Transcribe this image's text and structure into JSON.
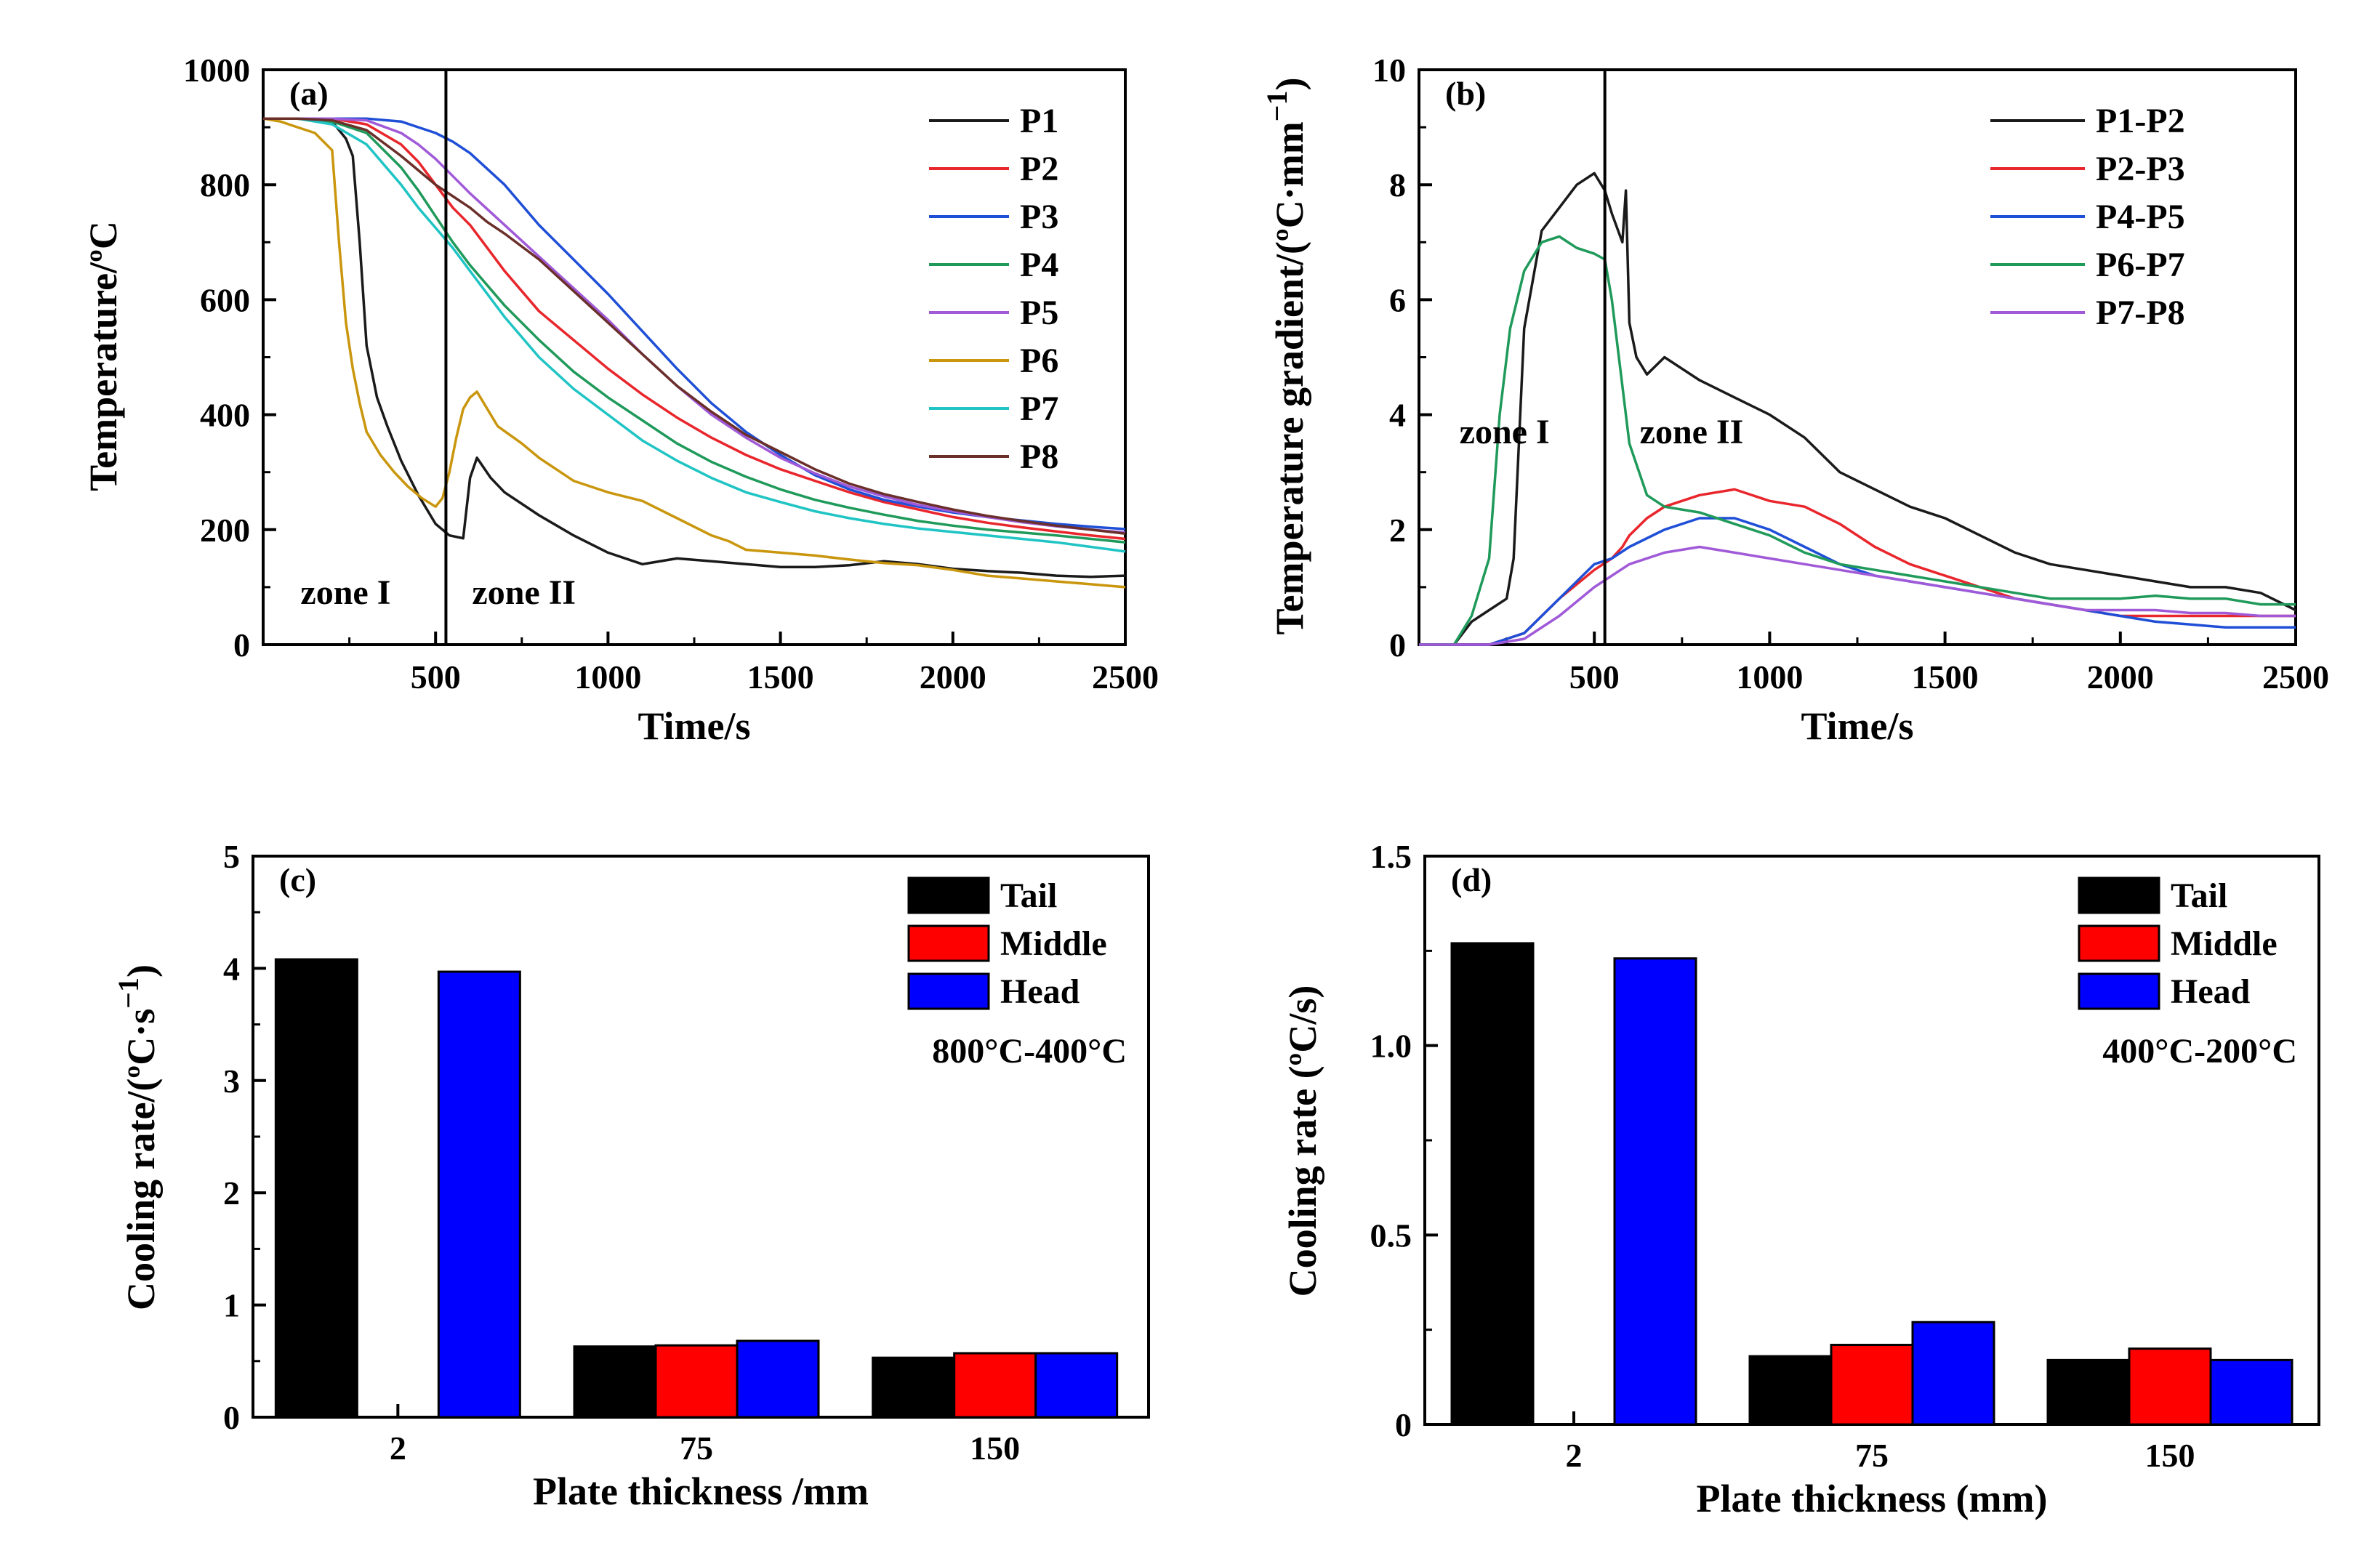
{
  "colors": {
    "P1": "#1a1a1a",
    "P2": "#e8262c",
    "P3": "#1f4fd6",
    "P4": "#1f9a5a",
    "P5": "#a05ad8",
    "P6": "#c9960e",
    "P7": "#20c4c4",
    "P8": "#6b2f2a",
    "P1-P2": "#1a1a1a",
    "P2-P3": "#e8262c",
    "P4-P5": "#1f4fd6",
    "P6-P7": "#1f9a5a",
    "P7-P8": "#a05ad8",
    "Tail": "#000000",
    "Middle": "#ff0000",
    "Head": "#0000ff"
  },
  "chart_data": [
    {
      "panel": "(a)",
      "type": "line",
      "xlabel": "Time/s",
      "ylabel": "Temperature/ºC",
      "xlim": [
        0,
        2500
      ],
      "ylim": [
        0,
        1000
      ],
      "xticks": [
        "500",
        "1000",
        "1500",
        "2000",
        "2500"
      ],
      "yticks": [
        "0",
        "200",
        "400",
        "600",
        "800",
        "1000"
      ],
      "legend_position": "top-right",
      "zones": {
        "divider_x": 530,
        "left_label": "zone I",
        "right_label": "zone II"
      },
      "series": [
        {
          "name": "P1",
          "x": [
            0,
            100,
            200,
            240,
            260,
            280,
            300,
            330,
            360,
            400,
            450,
            500,
            540,
            580,
            600,
            620,
            660,
            700,
            800,
            900,
            1000,
            1100,
            1200,
            1300,
            1400,
            1500,
            1600,
            1700,
            1800,
            1900,
            2000,
            2100,
            2200,
            2300,
            2400,
            2500
          ],
          "y": [
            915,
            915,
            910,
            880,
            850,
            700,
            520,
            430,
            380,
            320,
            260,
            210,
            190,
            185,
            290,
            325,
            290,
            265,
            225,
            190,
            160,
            140,
            150,
            145,
            140,
            135,
            135,
            138,
            145,
            140,
            132,
            128,
            125,
            120,
            118,
            120
          ]
        },
        {
          "name": "P2",
          "x": [
            0,
            100,
            200,
            300,
            400,
            450,
            500,
            550,
            600,
            650,
            700,
            800,
            900,
            1000,
            1100,
            1200,
            1300,
            1400,
            1500,
            1600,
            1700,
            1800,
            1900,
            2000,
            2100,
            2200,
            2300,
            2400,
            2500
          ],
          "y": [
            915,
            915,
            915,
            905,
            870,
            840,
            800,
            760,
            730,
            690,
            650,
            580,
            530,
            480,
            435,
            395,
            360,
            330,
            305,
            285,
            265,
            248,
            235,
            222,
            212,
            204,
            197,
            190,
            184
          ]
        },
        {
          "name": "P3",
          "x": [
            0,
            100,
            200,
            300,
            400,
            450,
            500,
            550,
            600,
            700,
            800,
            900,
            1000,
            1100,
            1200,
            1300,
            1400,
            1500,
            1600,
            1700,
            1800,
            1900,
            2000,
            2100,
            2200,
            2300,
            2400,
            2500
          ],
          "y": [
            915,
            915,
            915,
            915,
            910,
            900,
            890,
            875,
            855,
            800,
            730,
            670,
            610,
            545,
            480,
            420,
            370,
            330,
            295,
            270,
            252,
            240,
            230,
            222,
            216,
            210,
            205,
            201
          ]
        },
        {
          "name": "P4",
          "x": [
            0,
            100,
            200,
            300,
            400,
            450,
            500,
            550,
            600,
            700,
            800,
            900,
            1000,
            1100,
            1200,
            1300,
            1400,
            1500,
            1600,
            1700,
            1800,
            1900,
            2000,
            2100,
            2200,
            2300,
            2400,
            2500
          ],
          "y": [
            915,
            915,
            910,
            890,
            830,
            790,
            745,
            700,
            660,
            590,
            530,
            475,
            430,
            390,
            350,
            318,
            292,
            270,
            252,
            238,
            226,
            215,
            207,
            200,
            195,
            190,
            184,
            178
          ]
        },
        {
          "name": "P5",
          "x": [
            0,
            100,
            200,
            300,
            400,
            450,
            500,
            550,
            600,
            700,
            800,
            900,
            1000,
            1100,
            1200,
            1300,
            1400,
            1500,
            1600,
            1700,
            1800,
            1900,
            2000,
            2100,
            2200,
            2300,
            2400,
            2500
          ],
          "y": [
            915,
            915,
            915,
            912,
            890,
            870,
            845,
            815,
            785,
            730,
            675,
            620,
            565,
            505,
            450,
            400,
            360,
            325,
            298,
            275,
            258,
            243,
            232,
            222,
            213,
            206,
            200,
            195
          ]
        },
        {
          "name": "P6",
          "x": [
            0,
            50,
            100,
            150,
            200,
            220,
            240,
            260,
            280,
            300,
            340,
            380,
            420,
            460,
            500,
            520,
            540,
            560,
            580,
            600,
            620,
            640,
            680,
            750,
            800,
            900,
            1000,
            1100,
            1200,
            1300,
            1350,
            1400,
            1500,
            1600,
            1700,
            1800,
            1900,
            2000,
            2100,
            2200,
            2300,
            2400,
            2500
          ],
          "y": [
            915,
            910,
            900,
            890,
            860,
            700,
            560,
            480,
            420,
            370,
            330,
            300,
            275,
            255,
            240,
            255,
            300,
            360,
            410,
            430,
            440,
            420,
            380,
            350,
            325,
            285,
            265,
            250,
            220,
            190,
            180,
            165,
            160,
            155,
            148,
            142,
            138,
            130,
            120,
            115,
            110,
            105,
            100
          ]
        },
        {
          "name": "P7",
          "x": [
            0,
            100,
            200,
            300,
            400,
            450,
            500,
            550,
            600,
            700,
            800,
            900,
            1000,
            1100,
            1200,
            1300,
            1400,
            1500,
            1600,
            1700,
            1800,
            1900,
            2000,
            2100,
            2200,
            2300,
            2400,
            2500
          ],
          "y": [
            915,
            915,
            905,
            870,
            800,
            760,
            725,
            690,
            650,
            570,
            500,
            445,
            400,
            355,
            320,
            290,
            265,
            248,
            232,
            220,
            210,
            202,
            196,
            190,
            184,
            178,
            170,
            162
          ]
        },
        {
          "name": "P8",
          "x": [
            0,
            100,
            200,
            300,
            400,
            450,
            500,
            550,
            600,
            650,
            700,
            800,
            900,
            1000,
            1100,
            1200,
            1300,
            1400,
            1500,
            1600,
            1700,
            1800,
            1900,
            2000,
            2100,
            2200,
            2300,
            2400,
            2500
          ],
          "y": [
            915,
            915,
            912,
            895,
            850,
            825,
            800,
            780,
            760,
            735,
            715,
            670,
            615,
            560,
            505,
            450,
            405,
            365,
            335,
            305,
            280,
            262,
            248,
            235,
            224,
            215,
            207,
            200,
            193
          ]
        }
      ]
    },
    {
      "panel": "(b)",
      "type": "line",
      "xlabel": "Time/s",
      "ylabel": "Temperature gradient/(ºC·mm",
      "ylabel_exp": "−1",
      "ylabel_close": ")",
      "xlim": [
        0,
        2500
      ],
      "ylim": [
        0,
        10
      ],
      "xticks": [
        "500",
        "1000",
        "1500",
        "2000",
        "2500"
      ],
      "yticks": [
        "0",
        "2",
        "4",
        "6",
        "8",
        "10"
      ],
      "legend_position": "top-right",
      "zones": {
        "divider_x": 530,
        "left_label": "zone I",
        "right_label": "zone II"
      },
      "series": [
        {
          "name": "P1-P2",
          "x": [
            0,
            100,
            150,
            200,
            250,
            270,
            300,
            350,
            400,
            450,
            500,
            530,
            550,
            580,
            590,
            600,
            620,
            650,
            700,
            800,
            900,
            1000,
            1100,
            1200,
            1300,
            1400,
            1500,
            1600,
            1700,
            1800,
            1900,
            2000,
            2100,
            2200,
            2300,
            2400,
            2500
          ],
          "y": [
            0,
            0,
            0.4,
            0.6,
            0.8,
            1.5,
            5.5,
            7.2,
            7.6,
            8.0,
            8.2,
            7.9,
            7.5,
            7.0,
            7.9,
            5.6,
            5.0,
            4.7,
            5.0,
            4.6,
            4.3,
            4.0,
            3.6,
            3.0,
            2.7,
            2.4,
            2.2,
            1.9,
            1.6,
            1.4,
            1.3,
            1.2,
            1.1,
            1.0,
            1.0,
            0.9,
            0.6
          ]
        },
        {
          "name": "P2-P3",
          "x": [
            0,
            200,
            300,
            400,
            500,
            550,
            580,
            600,
            650,
            700,
            800,
            900,
            1000,
            1100,
            1200,
            1300,
            1400,
            1500,
            1600,
            1700,
            1800,
            1900,
            2000,
            2100,
            2200,
            2300,
            2400,
            2500
          ],
          "y": [
            0,
            0,
            0.2,
            0.8,
            1.3,
            1.5,
            1.7,
            1.9,
            2.2,
            2.4,
            2.6,
            2.7,
            2.5,
            2.4,
            2.1,
            1.7,
            1.4,
            1.2,
            1.0,
            0.8,
            0.7,
            0.6,
            0.5,
            0.5,
            0.5,
            0.5,
            0.5,
            0.5
          ]
        },
        {
          "name": "P4-P5",
          "x": [
            0,
            200,
            300,
            400,
            500,
            550,
            600,
            700,
            800,
            900,
            1000,
            1100,
            1200,
            1300,
            1400,
            1500,
            1600,
            1700,
            1800,
            1900,
            2000,
            2100,
            2200,
            2300,
            2400,
            2500
          ],
          "y": [
            0,
            0,
            0.2,
            0.8,
            1.4,
            1.5,
            1.7,
            2.0,
            2.2,
            2.2,
            2.0,
            1.7,
            1.4,
            1.2,
            1.1,
            1.0,
            0.9,
            0.8,
            0.7,
            0.6,
            0.5,
            0.4,
            0.35,
            0.3,
            0.3,
            0.3
          ]
        },
        {
          "name": "P6-P7",
          "x": [
            0,
            100,
            150,
            200,
            230,
            260,
            300,
            350,
            400,
            450,
            500,
            530,
            550,
            580,
            600,
            650,
            700,
            800,
            900,
            1000,
            1100,
            1200,
            1300,
            1400,
            1500,
            1600,
            1700,
            1800,
            1900,
            2000,
            2100,
            2200,
            2300,
            2400,
            2500
          ],
          "y": [
            0,
            0,
            0.5,
            1.5,
            4.0,
            5.5,
            6.5,
            7.0,
            7.1,
            6.9,
            6.8,
            6.7,
            6.0,
            4.5,
            3.5,
            2.6,
            2.4,
            2.3,
            2.1,
            1.9,
            1.6,
            1.4,
            1.3,
            1.2,
            1.1,
            1.0,
            0.9,
            0.8,
            0.8,
            0.8,
            0.85,
            0.8,
            0.8,
            0.7,
            0.7
          ]
        },
        {
          "name": "P7-P8",
          "x": [
            0,
            200,
            300,
            400,
            500,
            550,
            600,
            700,
            800,
            900,
            1000,
            1100,
            1200,
            1300,
            1400,
            1500,
            1600,
            1700,
            1800,
            1900,
            2000,
            2100,
            2200,
            2300,
            2400,
            2500
          ],
          "y": [
            0,
            0,
            0.1,
            0.5,
            1.0,
            1.2,
            1.4,
            1.6,
            1.7,
            1.6,
            1.5,
            1.4,
            1.3,
            1.2,
            1.1,
            1.0,
            0.9,
            0.8,
            0.7,
            0.6,
            0.6,
            0.6,
            0.55,
            0.55,
            0.5,
            0.5
          ]
        }
      ]
    },
    {
      "panel": "(c)",
      "type": "bar",
      "xlabel": "Plate thickness /mm",
      "ylabel": "Cooling rate/(ºC·s",
      "ylabel_exp": "−1",
      "ylabel_close": ")",
      "annotation": "800°C-400°C",
      "categories": [
        "2",
        "75",
        "150"
      ],
      "ylim": [
        0,
        5
      ],
      "yticks": [
        "0",
        "1",
        "2",
        "3",
        "4",
        "5"
      ],
      "legend_position": "top-right",
      "series": [
        {
          "name": "Tail",
          "values": [
            4.08,
            0.63,
            0.53
          ]
        },
        {
          "name": "Middle",
          "values": [
            0,
            0.64,
            0.57
          ]
        },
        {
          "name": "Head",
          "values": [
            3.97,
            0.68,
            0.57
          ]
        }
      ]
    },
    {
      "panel": "(d)",
      "type": "bar",
      "xlabel": "Plate thickness (mm)",
      "ylabel": "Cooling rate (ºC/s)",
      "annotation": "400°C-200°C",
      "categories": [
        "2",
        "75",
        "150"
      ],
      "ylim": [
        0,
        1.5
      ],
      "yticks": [
        "0",
        "0.5",
        "1.0",
        "1.5"
      ],
      "legend_position": "top-right",
      "series": [
        {
          "name": "Tail",
          "values": [
            1.27,
            0.18,
            0.17
          ]
        },
        {
          "name": "Middle",
          "values": [
            0,
            0.21,
            0.2
          ]
        },
        {
          "name": "Head",
          "values": [
            1.23,
            0.27,
            0.17
          ]
        }
      ]
    }
  ]
}
